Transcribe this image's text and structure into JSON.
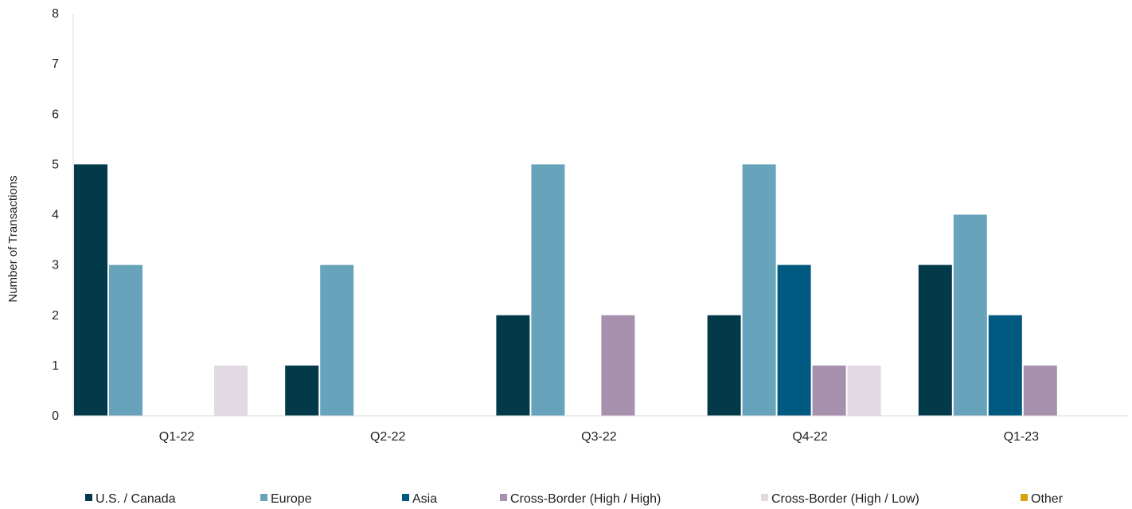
{
  "chart_data": {
    "type": "bar",
    "title": "",
    "xlabel": "",
    "ylabel": "Number of Transactions",
    "ylim": [
      0,
      8
    ],
    "yticks": [
      "0",
      "1",
      "2",
      "3",
      "4",
      "5",
      "6",
      "7",
      "8"
    ],
    "grid": false,
    "legend_position": "bottom",
    "categories": [
      "Q1-22",
      "Q2-22",
      "Q3-22",
      "Q4-22",
      "Q1-23"
    ],
    "series": [
      {
        "name": "U.S. / Canada",
        "color": "#023a4a",
        "values": [
          5,
          1,
          2,
          2,
          3
        ]
      },
      {
        "name": "Europe",
        "color": "#67a3ba",
        "values": [
          3,
          3,
          5,
          5,
          4
        ]
      },
      {
        "name": "Asia",
        "color": "#005980",
        "values": [
          0,
          0,
          0,
          3,
          2
        ]
      },
      {
        "name": "Cross-Border (High / High)",
        "color": "#a78fae",
        "values": [
          0,
          0,
          2,
          1,
          1
        ]
      },
      {
        "name": "Cross-Border (High / Low)",
        "color": "#e3d9e3",
        "values": [
          1,
          0,
          0,
          1,
          0
        ]
      },
      {
        "name": "Other",
        "color": "#d4a50f",
        "values": [
          0,
          0,
          0,
          0,
          0
        ]
      }
    ]
  }
}
